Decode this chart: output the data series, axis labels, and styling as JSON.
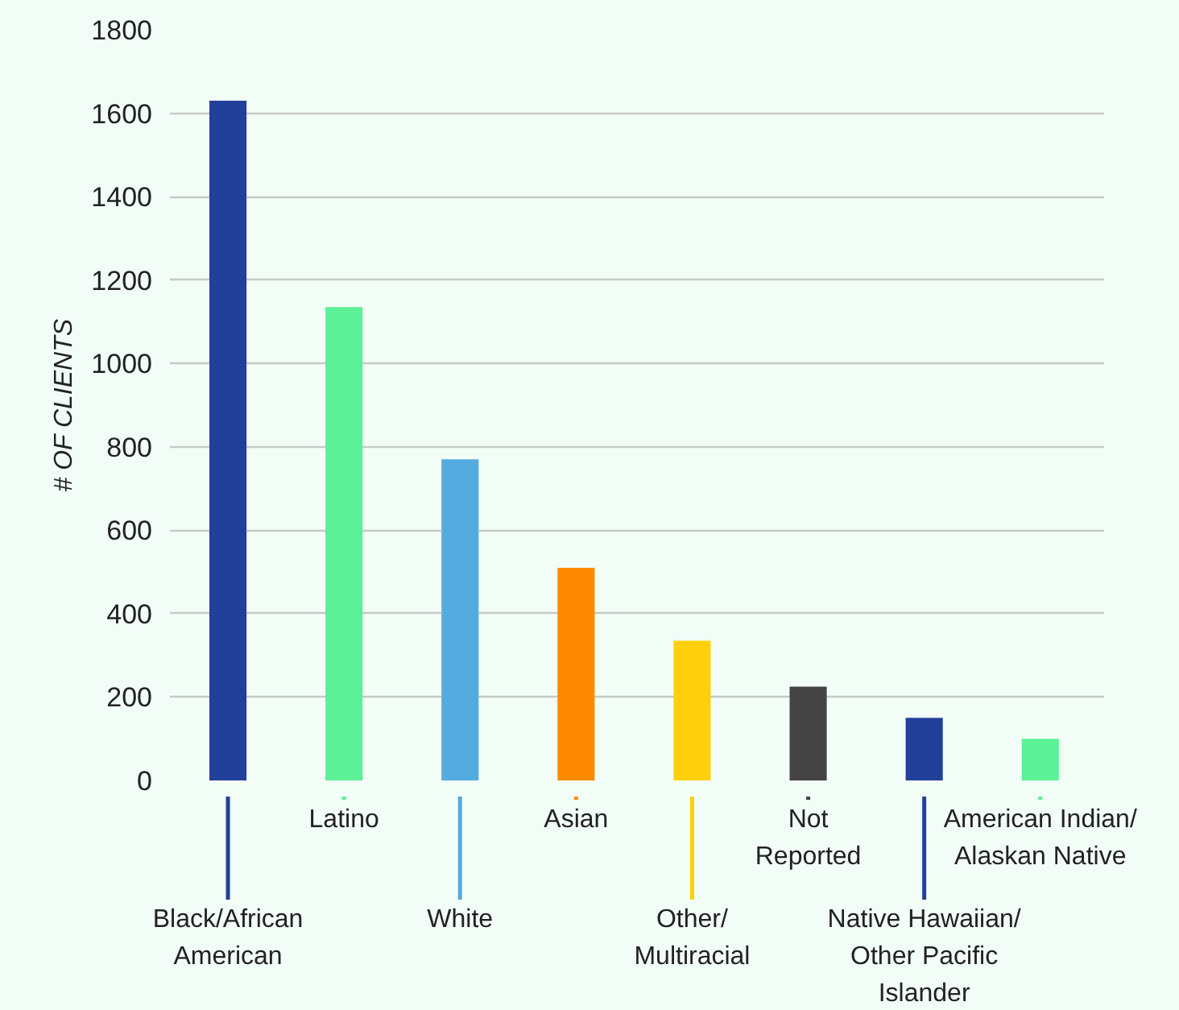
{
  "chart_data": {
    "type": "bar",
    "ylabel": "# OF CLIENTS",
    "categories": [
      "Black/African\nAmerican",
      "Latino",
      "White",
      "Asian",
      "Other/\nMultiracial",
      "Not\nReported",
      "Native Hawaiian/\nOther Pacific\nIslander",
      "American Indian/\nAlaskan Native"
    ],
    "values": [
      1630,
      1135,
      770,
      510,
      335,
      225,
      150,
      100
    ],
    "colors": [
      "#22409a",
      "#5cf097",
      "#54abdf",
      "#fd8a00",
      "#ffd00b",
      "#444444",
      "#22409a",
      "#5cf097"
    ],
    "ylim": [
      0,
      1800
    ],
    "yticks": [
      0,
      200,
      400,
      600,
      800,
      1000,
      1200,
      1400,
      1600,
      1800
    ],
    "grid": "y"
  }
}
